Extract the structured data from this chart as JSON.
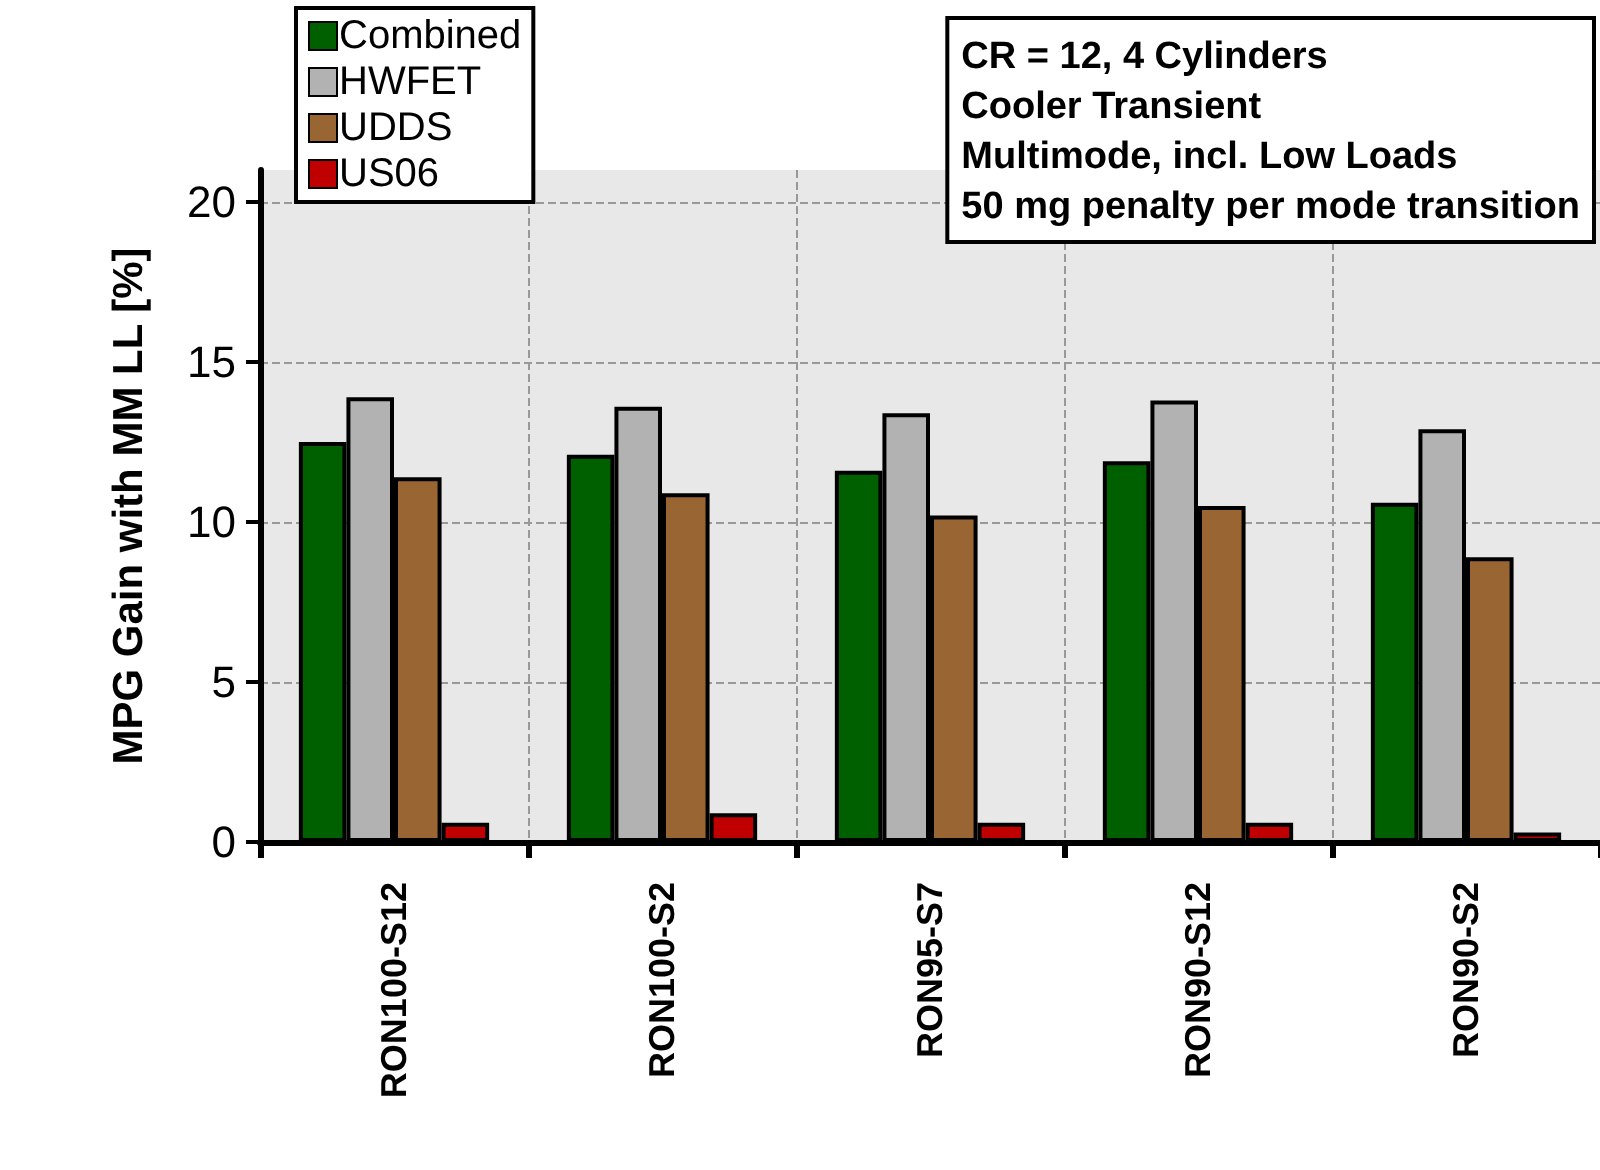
{
  "chart_data": {
    "type": "bar",
    "ylabel": "MPG Gain with MM LL [%]",
    "categories": [
      "RON100-S12",
      "RON100-S2",
      "RON95-S7",
      "RON90-S12",
      "RON90-S2"
    ],
    "series": [
      {
        "name": "Combined",
        "color": "#006000",
        "values": [
          12.5,
          12.1,
          11.6,
          11.9,
          10.6
        ]
      },
      {
        "name": "HWFET",
        "color": "#b2b2b2",
        "values": [
          13.9,
          13.6,
          13.4,
          13.8,
          12.9
        ]
      },
      {
        "name": "UDDS",
        "color": "#996633",
        "values": [
          11.4,
          10.9,
          10.2,
          10.5,
          8.9
        ]
      },
      {
        "name": "US06",
        "color": "#c00000",
        "values": [
          0.6,
          0.9,
          0.6,
          0.6,
          0.3
        ]
      }
    ],
    "annotations": [
      "CR = 12, 4 Cylinders",
      "Cooler Transient",
      "Multimode, incl. Low Loads",
      "50 mg penalty per mode transition"
    ],
    "ylim": [
      0,
      21
    ],
    "yticks": [
      0,
      5,
      10,
      15,
      20
    ],
    "grid": true,
    "legend": "top left"
  }
}
